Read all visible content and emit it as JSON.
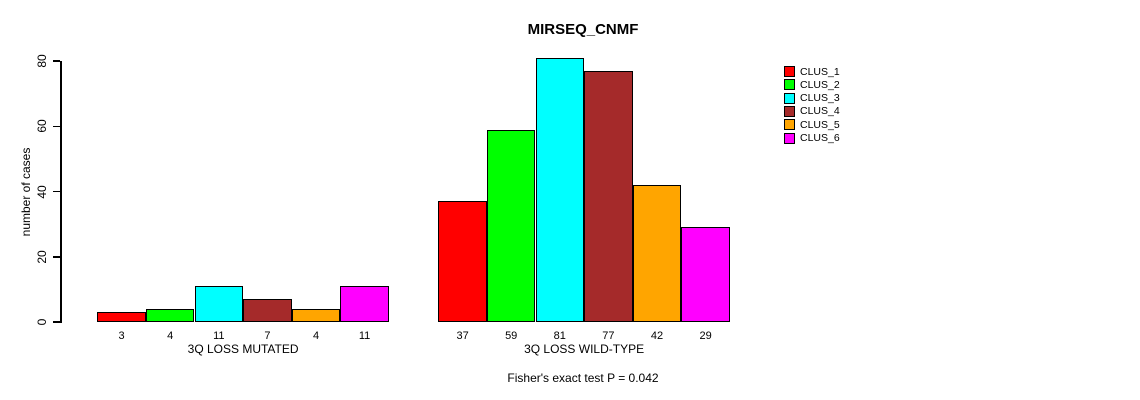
{
  "chart_data": {
    "type": "bar",
    "title": "MIRSEQ_CNMF",
    "xlabel": "",
    "ylabel": "number of cases",
    "ylim": [
      0,
      80
    ],
    "yticks": [
      0,
      20,
      40,
      60,
      80
    ],
    "grid": false,
    "legend_position": "right",
    "categories": [
      "3Q LOSS MUTATED",
      "3Q LOSS WILD-TYPE"
    ],
    "series": [
      {
        "name": "CLUS_1",
        "color": "#FF0000",
        "values": [
          3,
          37
        ]
      },
      {
        "name": "CLUS_2",
        "color": "#00FF00",
        "values": [
          4,
          59
        ]
      },
      {
        "name": "CLUS_3",
        "color": "#00FFFF",
        "values": [
          11,
          81
        ]
      },
      {
        "name": "CLUS_4",
        "color": "#A52A2A",
        "values": [
          7,
          77
        ]
      },
      {
        "name": "CLUS_5",
        "color": "#FFA500",
        "values": [
          4,
          42
        ]
      },
      {
        "name": "CLUS_6",
        "color": "#FF00FF",
        "values": [
          11,
          29
        ]
      }
    ],
    "bar_value_labels_shown": true,
    "annotation": "Fisher's exact test P = 0.042"
  }
}
